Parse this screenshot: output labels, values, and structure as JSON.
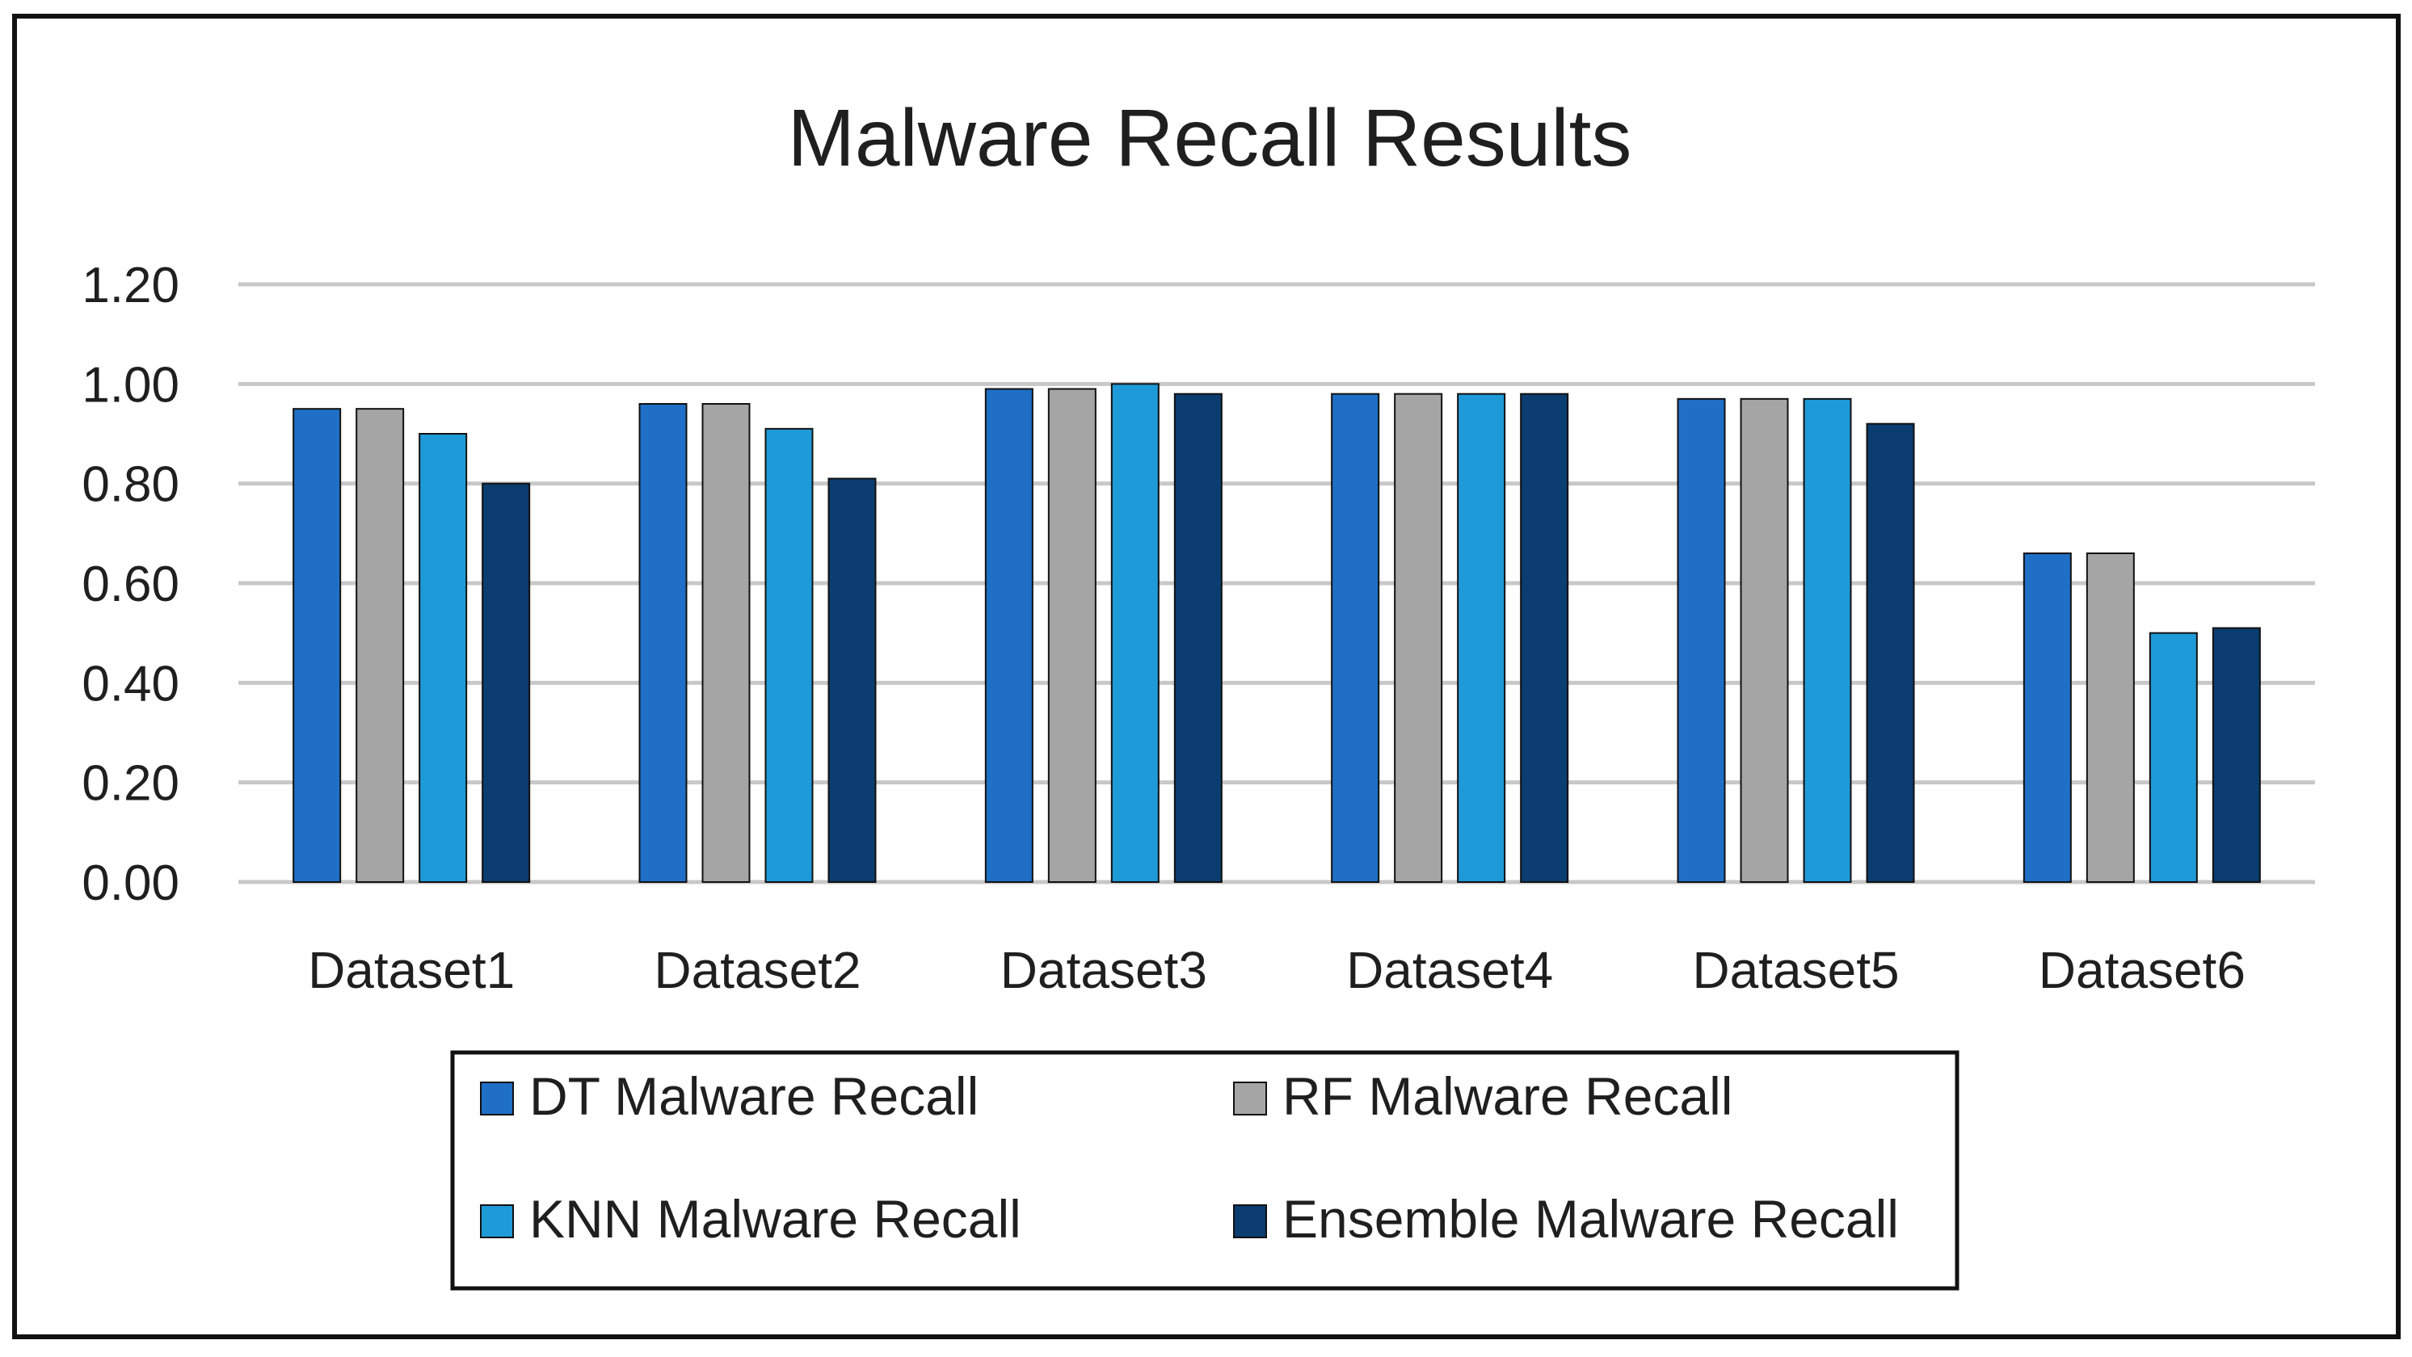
{
  "chart_data": {
    "type": "bar",
    "title": "Malware Recall Results",
    "xlabel": "",
    "ylabel": "",
    "categories": [
      "Dataset1",
      "Dataset2",
      "Dataset3",
      "Dataset4",
      "Dataset5",
      "Dataset6"
    ],
    "series": [
      {
        "name": "DT Malware Recall",
        "color": "#1f6fc6",
        "values": [
          0.95,
          0.96,
          0.99,
          0.98,
          0.97,
          0.66
        ]
      },
      {
        "name": "RF Malware Recall",
        "color": "#a5a5a5",
        "values": [
          0.95,
          0.96,
          0.99,
          0.98,
          0.97,
          0.66
        ]
      },
      {
        "name": "KNN Malware Recall",
        "color": "#1f9ad8",
        "values": [
          0.9,
          0.91,
          1.0,
          0.98,
          0.97,
          0.5
        ]
      },
      {
        "name": "Ensemble Malware Recall",
        "color": "#0b3d70",
        "values": [
          0.8,
          0.81,
          0.98,
          0.98,
          0.92,
          0.51
        ]
      }
    ],
    "ylim": [
      0,
      1.2
    ],
    "yticks": [
      0,
      0.2,
      0.4,
      0.6,
      0.8,
      1.0,
      1.2
    ],
    "ytick_labels": [
      "0.00",
      "0.20",
      "0.40",
      "0.60",
      "0.80",
      "1.00",
      "1.20"
    ],
    "grid": true,
    "legend_position": "bottom"
  }
}
